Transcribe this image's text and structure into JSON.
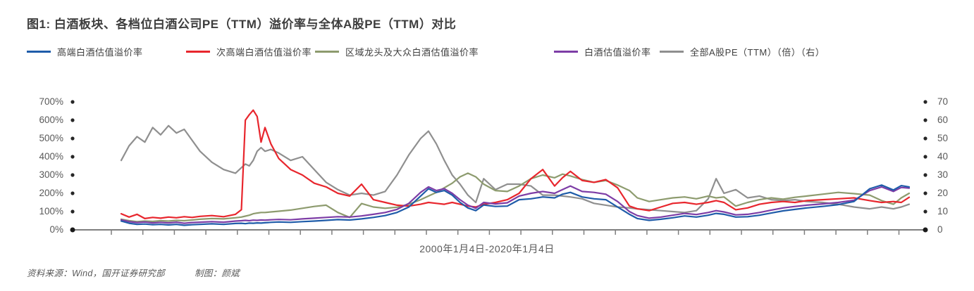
{
  "title": "图1: 白酒板块、各档位白酒公司PE（TTM）溢价率与全体A股PE（TTM）对比",
  "legend": {
    "items": [
      {
        "label": "高端白酒估值溢价率",
        "color": "#1f5ca9"
      },
      {
        "label": "次高端白酒估值溢价率",
        "color": "#e8262d"
      },
      {
        "label": "区域龙头及大众白酒估值溢价率",
        "color": "#8d9b6e"
      },
      {
        "label": "白酒估值溢价率",
        "color": "#7d3da6"
      },
      {
        "label": "全部A股PE（TTM）（倍）（右）",
        "color": "#8f8f8f"
      }
    ]
  },
  "axes": {
    "left": {
      "ticks": [
        "700%",
        "600%",
        "500%",
        "400%",
        "300%",
        "200%",
        "100%",
        "0%"
      ]
    },
    "right": {
      "ticks": [
        "70",
        "60",
        "50",
        "40",
        "30",
        "20",
        "10",
        "0"
      ]
    },
    "x_caption": "2000年1月4日-2020年1月4日"
  },
  "footer": {
    "source": "资料来源：Wind，国开证券研究部",
    "credit": "制图：颜斌"
  },
  "chart_data": {
    "type": "line",
    "title": "白酒板块、各档位白酒公司PE（TTM）溢价率与全体A股PE（TTM）对比",
    "x_label": "2000年1月4日-2020年1月4日",
    "x_range_years": [
      2000,
      2020
    ],
    "left_axis": {
      "unit": "%",
      "range": [
        0,
        700
      ],
      "ticks": [
        0,
        100,
        200,
        300,
        400,
        500,
        600,
        700
      ]
    },
    "right_axis": {
      "unit": "倍 (PE TTM)",
      "range": [
        0,
        70
      ],
      "ticks": [
        0,
        10,
        20,
        30,
        40,
        50,
        60,
        70
      ]
    },
    "grid": false,
    "legend_position": "top",
    "x": [
      2000.0,
      2000.2,
      2000.4,
      2000.6,
      2000.8,
      2001.0,
      2001.2,
      2001.4,
      2001.6,
      2001.8,
      2002.0,
      2002.3,
      2002.6,
      2002.9,
      2003.05,
      2003.15,
      2003.25,
      2003.35,
      2003.45,
      2003.55,
      2003.65,
      2003.8,
      2004.0,
      2004.3,
      2004.6,
      2004.9,
      2005.2,
      2005.5,
      2005.8,
      2006.1,
      2006.4,
      2006.7,
      2007.0,
      2007.3,
      2007.6,
      2007.8,
      2008.0,
      2008.2,
      2008.4,
      2008.6,
      2008.8,
      2009.0,
      2009.2,
      2009.5,
      2009.8,
      2010.1,
      2010.4,
      2010.7,
      2011.0,
      2011.2,
      2011.4,
      2011.7,
      2012.0,
      2012.3,
      2012.6,
      2012.9,
      2013.1,
      2013.4,
      2013.7,
      2014.0,
      2014.3,
      2014.6,
      2014.9,
      2015.1,
      2015.3,
      2015.6,
      2015.9,
      2016.2,
      2016.5,
      2016.8,
      2017.1,
      2017.4,
      2017.8,
      2018.2,
      2018.6,
      2019.0,
      2019.3,
      2019.6,
      2019.8,
      2020.0
    ],
    "series": [
      {
        "name": "全部A股PE（TTM）（倍）（右）",
        "axis": "right",
        "color": "#8f8f8f",
        "values": [
          38,
          46,
          51,
          48,
          56,
          52,
          57,
          53,
          55,
          49,
          43,
          37,
          33,
          31,
          34,
          36,
          35,
          38,
          43,
          45,
          43,
          44,
          42,
          38,
          40,
          33,
          26,
          22,
          19,
          20,
          19,
          21,
          30,
          41,
          50,
          54,
          47,
          38,
          30,
          25,
          19,
          15,
          28,
          22,
          25,
          25,
          24,
          19,
          19,
          18.5,
          18,
          17,
          14.5,
          13.5,
          12.5,
          12,
          11.5,
          11,
          10.5,
          10,
          9.5,
          10.5,
          17,
          28,
          20,
          22,
          17.5,
          18.5,
          16.5,
          16,
          16.5,
          15.5,
          15,
          14,
          12.5,
          11.5,
          12.5,
          11.5,
          12.5,
          14
        ]
      },
      {
        "name": "区域龙头及大众白酒估值溢价率",
        "axis": "left",
        "color": "#8d9b6e",
        "values": [
          58,
          50,
          45,
          48,
          46,
          50,
          48,
          52,
          50,
          54,
          58,
          62,
          60,
          66,
          70,
          75,
          80,
          88,
          92,
          95,
          95,
          98,
          102,
          108,
          118,
          128,
          135,
          95,
          68,
          144,
          125,
          118,
          124,
          140,
          165,
          185,
          205,
          230,
          255,
          290,
          310,
          290,
          250,
          215,
          210,
          240,
          280,
          300,
          285,
          305,
          295,
          275,
          260,
          270,
          245,
          215,
          175,
          155,
          165,
          175,
          180,
          170,
          185,
          175,
          180,
          130,
          150,
          165,
          175,
          168,
          178,
          185,
          195,
          205,
          198,
          190,
          160,
          140,
          175,
          200
        ]
      },
      {
        "name": "次高端白酒估值溢价率",
        "axis": "left",
        "color": "#e8262d",
        "values": [
          88,
          70,
          85,
          62,
          68,
          64,
          70,
          66,
          72,
          68,
          74,
          78,
          72,
          85,
          110,
          600,
          630,
          655,
          620,
          480,
          560,
          470,
          390,
          330,
          300,
          255,
          235,
          200,
          185,
          250,
          165,
          150,
          135,
          130,
          140,
          150,
          145,
          140,
          150,
          140,
          130,
          125,
          140,
          150,
          165,
          200,
          280,
          330,
          240,
          285,
          320,
          270,
          260,
          275,
          230,
          130,
          115,
          105,
          125,
          145,
          150,
          140,
          150,
          160,
          150,
          110,
          120,
          140,
          150,
          155,
          150,
          160,
          165,
          170,
          175,
          160,
          150,
          155,
          150,
          178
        ]
      },
      {
        "name": "白酒估值溢价率",
        "axis": "left",
        "color": "#7d3da6",
        "values": [
          55,
          45,
          40,
          43,
          38,
          41,
          38,
          42,
          36,
          40,
          42,
          45,
          42,
          48,
          50,
          52,
          50,
          53,
          52,
          54,
          53,
          55,
          57,
          55,
          60,
          64,
          68,
          72,
          70,
          76,
          85,
          95,
          112,
          145,
          205,
          235,
          215,
          225,
          200,
          165,
          135,
          118,
          150,
          142,
          148,
          185,
          200,
          210,
          200,
          220,
          240,
          210,
          205,
          195,
          155,
          100,
          78,
          64,
          70,
          80,
          90,
          84,
          95,
          105,
          98,
          82,
          85,
          95,
          108,
          120,
          128,
          135,
          142,
          150,
          162,
          215,
          235,
          210,
          232,
          228
        ]
      },
      {
        "name": "高端白酒估值溢价率",
        "axis": "left",
        "color": "#1f5ca9",
        "values": [
          48,
          36,
          30,
          32,
          28,
          30,
          27,
          30,
          25,
          28,
          30,
          33,
          30,
          35,
          36,
          34,
          37,
          36,
          38,
          37,
          39,
          41,
          43,
          41,
          45,
          48,
          52,
          56,
          54,
          60,
          68,
          78,
          95,
          125,
          185,
          225,
          205,
          215,
          190,
          150,
          120,
          105,
          136,
          128,
          130,
          165,
          170,
          180,
          175,
          195,
          205,
          180,
          170,
          165,
          125,
          85,
          62,
          52,
          58,
          66,
          76,
          70,
          80,
          90,
          85,
          70,
          72,
          80,
          92,
          104,
          112,
          120,
          128,
          138,
          155,
          225,
          245,
          218,
          242,
          235
        ]
      }
    ]
  }
}
